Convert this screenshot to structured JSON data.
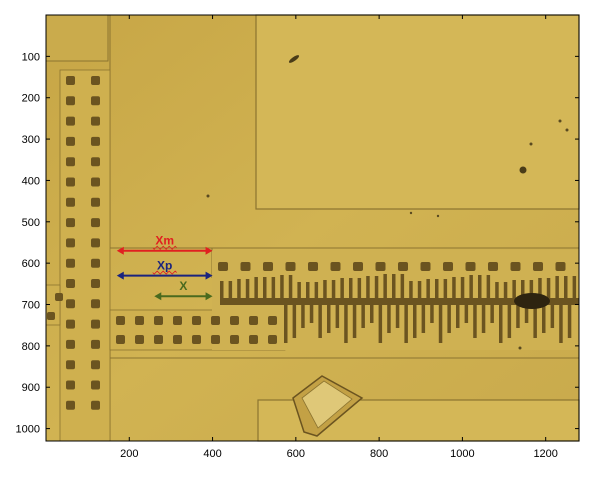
{
  "colors": {
    "background": "#c9a94a",
    "background_light": "#d6b95a",
    "pad": "#d9be5e",
    "dark_feature": "#6b5420",
    "xm": "#e02020",
    "xp": "#1a237e",
    "x": "#4a6a1e"
  },
  "axes": {
    "x_ticks": [
      "200",
      "400",
      "600",
      "800",
      "1000",
      "1200"
    ],
    "y_ticks": [
      "100",
      "200",
      "300",
      "400",
      "500",
      "600",
      "700",
      "800",
      "900",
      "1000"
    ],
    "xlim": [
      0,
      1280
    ],
    "ylim": [
      0,
      1030
    ]
  },
  "annotations": {
    "xm": {
      "label": "Xm",
      "from": 170,
      "to": 400,
      "y": 570
    },
    "xp": {
      "label": "Xp",
      "from": 170,
      "to": 400,
      "y": 630
    },
    "x": {
      "label": "X",
      "from": 260,
      "to": 400,
      "y": 680
    }
  }
}
